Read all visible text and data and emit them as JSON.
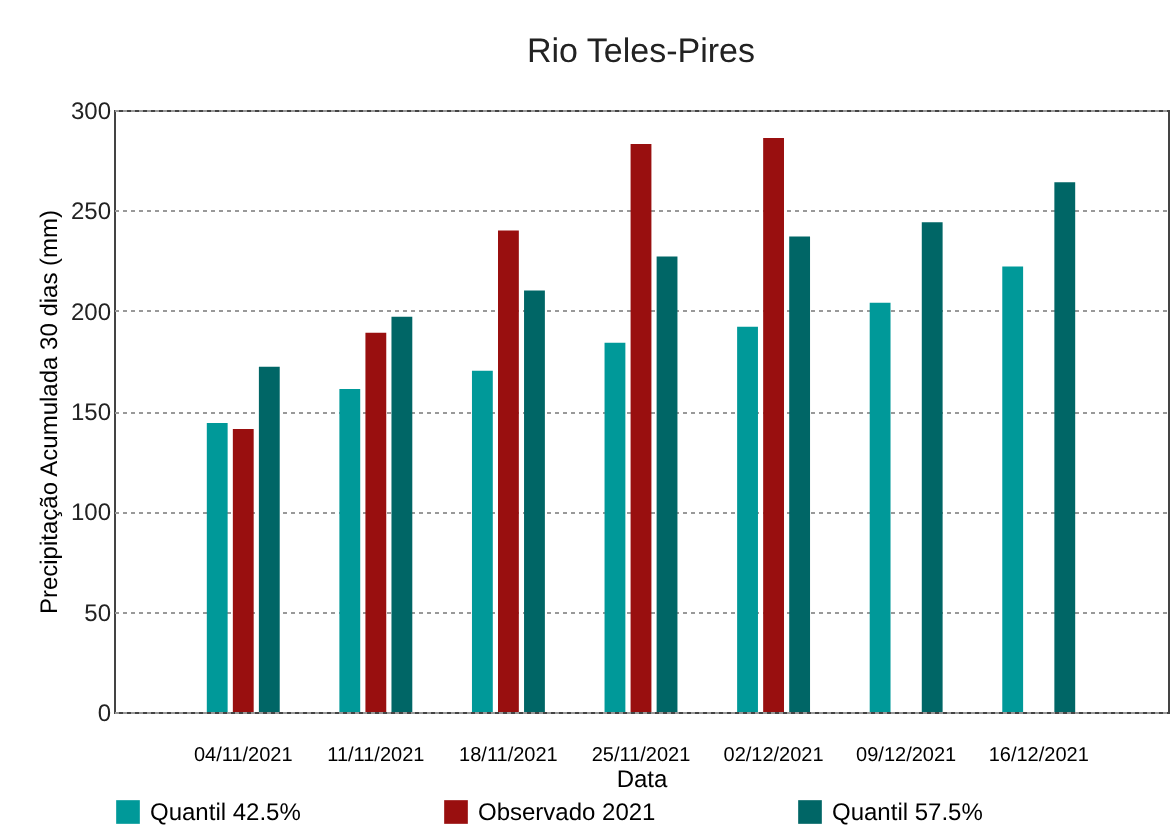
{
  "chart_data": {
    "type": "bar",
    "title": "Rio Teles-Pires",
    "xlabel": "Data",
    "ylabel": "Precipitação Acumulada 30 dias (mm)",
    "categories": [
      "04/11/2021",
      "11/11/2021",
      "18/11/2021",
      "25/11/2021",
      "02/12/2021",
      "09/12/2021",
      "16/12/2021"
    ],
    "series": [
      {
        "name": "Quantil 42.5%",
        "color": "#009999",
        "values": [
          144,
          161,
          170,
          184,
          192,
          204,
          222
        ]
      },
      {
        "name": "Observado 2021",
        "color": "#990f0f",
        "values": [
          141,
          189,
          240,
          283,
          286,
          null,
          null
        ]
      },
      {
        "name": "Quantil 57.5%",
        "color": "#006666",
        "values": [
          172,
          197,
          210,
          227,
          237,
          244,
          264
        ]
      }
    ],
    "ylim": [
      0,
      300
    ],
    "yticks": [
      0,
      50,
      100,
      150,
      200,
      250,
      300
    ],
    "grid": "y",
    "legend": "bottom"
  }
}
